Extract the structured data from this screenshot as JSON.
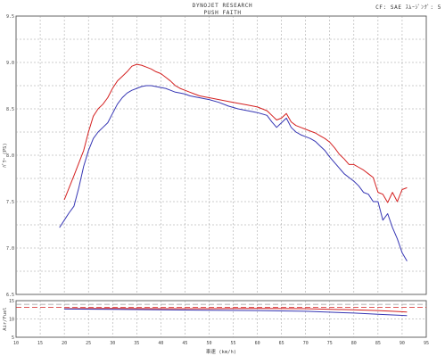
{
  "header": {
    "title": "DYNOJET RESEARCH",
    "subtitle": "PUSH FAITH",
    "correction": "CF: SAE  ｽﾑｰｼﾞﾝｸﾞ: 5"
  },
  "chart_data": [
    {
      "type": "line",
      "xlabel": "車速 (km/h)",
      "ylabel": "ﾊﾟﾜｰ (PS)",
      "xlim": [
        10,
        95
      ],
      "ylim": [
        6.5,
        9.5
      ],
      "x_ticks": [
        "10",
        "15",
        "20",
        "25",
        "30",
        "35",
        "40",
        "45",
        "50",
        "55",
        "60",
        "65",
        "70",
        "75",
        "80",
        "85",
        "90",
        "95"
      ],
      "y_ticks": [
        "6.5",
        "7.0",
        "7.5",
        "8.0",
        "8.5",
        "9.0",
        "9.5"
      ],
      "grid": true,
      "series": [
        {
          "color": "#d42020",
          "x": [
            20,
            22,
            24,
            25,
            26,
            27,
            28,
            29,
            30,
            31,
            32,
            33,
            34,
            35,
            36,
            37,
            38,
            39,
            40,
            41,
            42,
            43,
            44,
            45,
            46,
            47,
            48,
            49,
            50,
            52,
            54,
            56,
            58,
            60,
            62,
            63,
            64,
            65,
            66,
            67,
            68,
            69,
            70,
            71,
            72,
            73,
            74,
            75,
            76,
            77,
            78,
            79,
            80,
            81,
            82,
            83,
            84,
            85,
            86,
            87,
            88,
            89,
            90,
            91
          ],
          "y": [
            7.52,
            7.78,
            8.05,
            8.25,
            8.42,
            8.5,
            8.55,
            8.62,
            8.72,
            8.8,
            8.85,
            8.9,
            8.96,
            8.98,
            8.97,
            8.95,
            8.93,
            8.9,
            8.88,
            8.84,
            8.8,
            8.75,
            8.72,
            8.7,
            8.68,
            8.66,
            8.64,
            8.63,
            8.62,
            8.6,
            8.58,
            8.56,
            8.54,
            8.52,
            8.48,
            8.43,
            8.38,
            8.4,
            8.45,
            8.36,
            8.32,
            8.3,
            8.28,
            8.26,
            8.24,
            8.21,
            8.18,
            8.14,
            8.08,
            8.01,
            7.96,
            7.9,
            7.9,
            7.87,
            7.84,
            7.8,
            7.76,
            7.6,
            7.58,
            7.49,
            7.6,
            7.5,
            7.63,
            7.65
          ]
        },
        {
          "color": "#3636b4",
          "x": [
            19,
            20,
            21,
            22,
            23,
            24,
            25,
            26,
            27,
            28,
            29,
            30,
            31,
            32,
            33,
            34,
            35,
            36,
            37,
            38,
            39,
            40,
            41,
            42,
            43,
            44,
            45,
            46,
            47,
            48,
            49,
            50,
            52,
            54,
            56,
            58,
            60,
            62,
            63,
            64,
            65,
            66,
            67,
            68,
            69,
            70,
            71,
            72,
            73,
            74,
            75,
            76,
            77,
            78,
            79,
            80,
            81,
            82,
            83,
            84,
            85,
            86,
            87,
            88,
            89,
            90,
            91
          ],
          "y": [
            7.22,
            7.3,
            7.38,
            7.45,
            7.65,
            7.88,
            8.05,
            8.18,
            8.25,
            8.3,
            8.35,
            8.45,
            8.55,
            8.62,
            8.67,
            8.7,
            8.72,
            8.74,
            8.75,
            8.75,
            8.74,
            8.73,
            8.72,
            8.7,
            8.68,
            8.67,
            8.66,
            8.64,
            8.63,
            8.62,
            8.61,
            8.6,
            8.57,
            8.53,
            8.5,
            8.48,
            8.46,
            8.43,
            8.36,
            8.3,
            8.35,
            8.4,
            8.3,
            8.25,
            8.22,
            8.2,
            8.18,
            8.15,
            8.1,
            8.05,
            7.98,
            7.92,
            7.86,
            7.8,
            7.76,
            7.72,
            7.67,
            7.6,
            7.58,
            7.5,
            7.5,
            7.3,
            7.37,
            7.22,
            7.1,
            6.95,
            6.86
          ]
        }
      ]
    },
    {
      "type": "line",
      "xlabel": "車速 (km/h)",
      "ylabel": "Air/Fuel",
      "xlim": [
        10,
        95
      ],
      "ylim": [
        5,
        15
      ],
      "x_ticks": [
        "10",
        "15",
        "20",
        "25",
        "30",
        "35",
        "40",
        "45",
        "50",
        "55",
        "60",
        "65",
        "70",
        "75",
        "80",
        "85",
        "90",
        "95"
      ],
      "y_ticks": [
        "5",
        "10",
        "15"
      ],
      "grid": true,
      "reference_lines": [
        {
          "y": 13.2,
          "color": "#d42020"
        },
        {
          "y": 14.0,
          "color": "#9a9a9a"
        }
      ],
      "series": [
        {
          "color": "#d42020",
          "x": [
            20,
            30,
            40,
            50,
            60,
            70,
            80,
            85,
            88,
            91
          ],
          "y": [
            12.8,
            12.85,
            12.8,
            12.8,
            12.85,
            12.8,
            12.5,
            12.3,
            12.1,
            11.9
          ]
        },
        {
          "color": "#3636b4",
          "x": [
            20,
            30,
            40,
            50,
            60,
            70,
            80,
            85,
            88,
            91
          ],
          "y": [
            12.7,
            12.6,
            12.5,
            12.4,
            12.3,
            12.1,
            11.6,
            11.3,
            11.1,
            10.9
          ]
        }
      ]
    }
  ]
}
